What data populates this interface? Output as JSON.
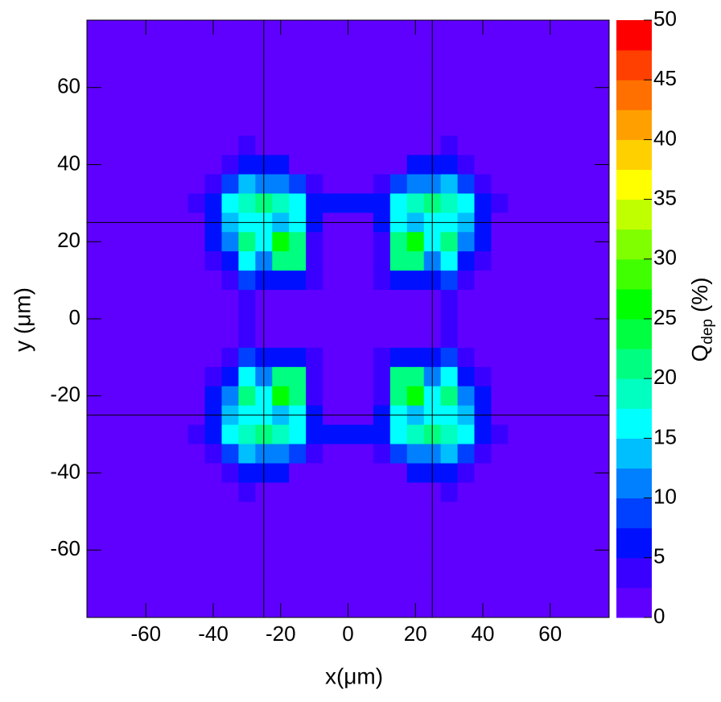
{
  "chart_data": {
    "type": "heatmap",
    "xlabel": "x(μm)",
    "ylabel": "y (μm)",
    "zlabel": "Q",
    "zlabel_sub": "dep",
    "zlabel_unit": "(%)",
    "xlim": [
      -77.5,
      77.5
    ],
    "ylim": [
      -77.5,
      77.5
    ],
    "xticks": [
      -60,
      -40,
      -20,
      0,
      20,
      40,
      60
    ],
    "yticks": [
      -60,
      -40,
      -20,
      0,
      20,
      40,
      60
    ],
    "zlim": [
      0,
      50
    ],
    "zticks": [
      0,
      5,
      10,
      15,
      20,
      25,
      30,
      35,
      40,
      45,
      50
    ],
    "colors": [
      "#5f00ff",
      "#3a00ff",
      "#0010ff",
      "#0040ff",
      "#0080ff",
      "#00bfff",
      "#00ffff",
      "#00ffc0",
      "#00ff80",
      "#00ff40",
      "#00ff00",
      "#40ff00",
      "#80ff00",
      "#c0ff00",
      "#ffff00",
      "#ffd000",
      "#ffa000",
      "#ff7000",
      "#ff4000",
      "#ff0000"
    ],
    "lines_x": [
      -25,
      25
    ],
    "lines_y": [
      -25,
      25
    ],
    "x": [
      -75,
      -70,
      -65,
      -60,
      -55,
      -50,
      -45,
      -40,
      -35,
      -30,
      -25,
      -20,
      -15,
      -10,
      -5,
      0,
      5,
      10,
      15,
      20,
      25,
      30,
      35,
      40,
      45,
      50,
      55,
      60,
      65,
      70,
      75
    ],
    "y": [
      75,
      70,
      65,
      60,
      55,
      50,
      45,
      40,
      35,
      30,
      25,
      20,
      15,
      10,
      5,
      0,
      -5,
      -10,
      -15,
      -20,
      -25,
      -30,
      -35,
      -40,
      -45,
      -50,
      -55,
      -60,
      -65,
      -70,
      -75
    ],
    "z": [
      [
        1,
        1,
        1,
        1,
        1,
        1,
        1,
        1,
        1,
        1,
        1,
        1,
        1,
        1,
        1,
        1,
        1,
        1,
        1,
        1,
        1,
        1,
        1,
        1,
        1,
        1,
        1,
        1,
        1,
        1,
        1
      ],
      [
        1,
        1,
        1,
        1,
        1,
        1,
        1,
        1,
        1,
        1,
        1,
        1,
        1,
        1,
        1,
        1,
        1,
        1,
        1,
        1,
        1,
        1,
        1,
        1,
        1,
        1,
        1,
        1,
        1,
        1,
        1
      ],
      [
        1,
        1,
        1,
        1,
        1,
        1,
        1,
        1,
        1,
        1,
        1,
        1,
        1,
        1,
        1,
        1,
        1,
        1,
        1,
        1,
        1,
        1,
        1,
        1,
        1,
        1,
        1,
        1,
        1,
        1,
        1
      ],
      [
        1,
        1,
        1,
        1,
        1,
        1,
        1,
        1,
        1,
        1,
        1,
        1,
        1,
        1,
        1,
        1,
        1,
        1,
        1,
        1,
        1,
        1,
        1,
        1,
        1,
        1,
        1,
        1,
        1,
        1,
        1
      ],
      [
        1,
        1,
        1,
        1,
        1,
        1,
        1,
        1,
        1,
        1,
        1,
        1,
        1,
        1,
        1,
        1,
        1,
        1,
        1,
        1,
        1,
        1,
        1,
        1,
        1,
        1,
        1,
        1,
        1,
        1,
        1
      ],
      [
        1,
        1,
        1,
        1,
        1,
        1,
        1,
        1,
        1,
        1,
        1,
        1,
        1,
        1,
        1,
        1,
        1,
        1,
        1,
        1,
        1,
        1,
        1,
        1,
        1,
        1,
        1,
        1,
        1,
        1,
        1
      ],
      [
        1,
        1,
        1,
        1,
        1,
        1,
        1,
        1,
        1,
        4,
        1,
        1,
        1,
        1,
        1,
        1,
        1,
        1,
        1,
        1,
        1,
        4,
        1,
        1,
        1,
        1,
        1,
        1,
        1,
        1,
        1
      ],
      [
        1,
        1,
        1,
        1,
        1,
        1,
        1,
        1,
        3,
        7,
        5,
        5,
        1,
        1,
        1,
        1,
        1,
        1,
        1,
        5,
        5,
        7,
        3,
        1,
        1,
        1,
        1,
        1,
        1,
        1,
        1
      ],
      [
        1,
        1,
        1,
        1,
        1,
        1,
        1,
        4,
        9,
        13,
        10,
        10,
        9,
        4,
        1,
        1,
        1,
        4,
        9,
        10,
        10,
        13,
        9,
        4,
        1,
        1,
        1,
        1,
        1,
        1,
        1
      ],
      [
        1,
        1,
        1,
        1,
        1,
        1,
        4,
        6,
        16,
        19,
        21,
        19,
        17,
        6,
        5,
        5,
        5,
        6,
        17,
        19,
        21,
        19,
        16,
        6,
        4,
        1,
        1,
        1,
        1,
        1,
        1
      ],
      [
        1,
        1,
        1,
        1,
        1,
        1,
        1,
        6,
        13,
        17,
        15,
        14,
        17,
        5,
        1,
        1,
        1,
        5,
        17,
        14,
        15,
        17,
        13,
        6,
        1,
        1,
        1,
        1,
        1,
        1,
        1
      ],
      [
        1,
        1,
        1,
        1,
        1,
        1,
        1,
        5,
        12,
        22,
        15,
        26,
        22,
        4,
        1,
        1,
        1,
        4,
        22,
        26,
        15,
        22,
        12,
        5,
        1,
        1,
        1,
        1,
        1,
        1,
        1
      ],
      [
        1,
        1,
        1,
        1,
        1,
        1,
        1,
        4,
        7,
        17,
        12,
        22,
        22,
        4,
        1,
        1,
        1,
        4,
        22,
        22,
        12,
        17,
        7,
        4,
        1,
        1,
        1,
        1,
        1,
        1,
        1
      ],
      [
        1,
        1,
        1,
        1,
        1,
        1,
        1,
        1,
        4,
        8,
        5,
        5,
        5,
        4,
        1,
        1,
        1,
        4,
        5,
        5,
        5,
        8,
        4,
        1,
        1,
        1,
        1,
        1,
        1,
        1,
        1
      ],
      [
        1,
        1,
        1,
        1,
        1,
        1,
        1,
        1,
        1,
        4,
        1,
        1,
        1,
        1,
        1,
        1,
        1,
        1,
        1,
        1,
        1,
        4,
        1,
        1,
        1,
        1,
        1,
        1,
        1,
        1,
        1
      ],
      [
        1,
        1,
        1,
        1,
        1,
        1,
        1,
        1,
        1,
        4,
        1,
        1,
        1,
        1,
        1,
        1,
        1,
        1,
        1,
        1,
        1,
        4,
        1,
        1,
        1,
        1,
        1,
        1,
        1,
        1,
        1
      ],
      [
        1,
        1,
        1,
        1,
        1,
        1,
        1,
        1,
        1,
        4,
        1,
        1,
        1,
        1,
        1,
        1,
        1,
        1,
        1,
        1,
        1,
        4,
        1,
        1,
        1,
        1,
        1,
        1,
        1,
        1,
        1
      ],
      [
        1,
        1,
        1,
        1,
        1,
        1,
        1,
        1,
        4,
        8,
        5,
        5,
        5,
        4,
        1,
        1,
        1,
        4,
        5,
        5,
        5,
        8,
        4,
        1,
        1,
        1,
        1,
        1,
        1,
        1,
        1
      ],
      [
        1,
        1,
        1,
        1,
        1,
        1,
        1,
        4,
        7,
        17,
        12,
        22,
        22,
        4,
        1,
        1,
        1,
        4,
        22,
        22,
        12,
        17,
        7,
        4,
        1,
        1,
        1,
        1,
        1,
        1,
        1
      ],
      [
        1,
        1,
        1,
        1,
        1,
        1,
        1,
        5,
        12,
        22,
        15,
        26,
        22,
        4,
        1,
        1,
        1,
        4,
        22,
        26,
        15,
        22,
        12,
        5,
        1,
        1,
        1,
        1,
        1,
        1,
        1
      ],
      [
        1,
        1,
        1,
        1,
        1,
        1,
        1,
        6,
        13,
        17,
        15,
        14,
        17,
        5,
        1,
        1,
        1,
        5,
        17,
        14,
        15,
        17,
        13,
        6,
        1,
        1,
        1,
        1,
        1,
        1,
        1
      ],
      [
        1,
        1,
        1,
        1,
        1,
        1,
        4,
        6,
        16,
        19,
        21,
        19,
        17,
        6,
        5,
        5,
        5,
        6,
        17,
        19,
        21,
        19,
        16,
        6,
        4,
        1,
        1,
        1,
        1,
        1,
        1
      ],
      [
        1,
        1,
        1,
        1,
        1,
        1,
        1,
        4,
        9,
        13,
        10,
        10,
        9,
        4,
        1,
        1,
        1,
        4,
        9,
        10,
        10,
        13,
        9,
        4,
        1,
        1,
        1,
        1,
        1,
        1,
        1
      ],
      [
        1,
        1,
        1,
        1,
        1,
        1,
        1,
        1,
        3,
        7,
        5,
        5,
        1,
        1,
        1,
        1,
        1,
        1,
        1,
        5,
        5,
        7,
        3,
        1,
        1,
        1,
        1,
        1,
        1,
        1,
        1
      ],
      [
        1,
        1,
        1,
        1,
        1,
        1,
        1,
        1,
        1,
        4,
        1,
        1,
        1,
        1,
        1,
        1,
        1,
        1,
        1,
        1,
        1,
        4,
        1,
        1,
        1,
        1,
        1,
        1,
        1,
        1,
        1
      ],
      [
        1,
        1,
        1,
        1,
        1,
        1,
        1,
        1,
        1,
        1,
        1,
        1,
        1,
        1,
        1,
        1,
        1,
        1,
        1,
        1,
        1,
        1,
        1,
        1,
        1,
        1,
        1,
        1,
        1,
        1,
        1
      ],
      [
        1,
        1,
        1,
        1,
        1,
        1,
        1,
        1,
        1,
        1,
        1,
        1,
        1,
        1,
        1,
        1,
        1,
        1,
        1,
        1,
        1,
        1,
        1,
        1,
        1,
        1,
        1,
        1,
        1,
        1,
        1
      ],
      [
        1,
        1,
        1,
        1,
        1,
        1,
        1,
        1,
        1,
        1,
        1,
        1,
        1,
        1,
        1,
        1,
        1,
        1,
        1,
        1,
        1,
        1,
        1,
        1,
        1,
        1,
        1,
        1,
        1,
        1,
        1
      ],
      [
        1,
        1,
        1,
        1,
        1,
        1,
        1,
        1,
        1,
        1,
        1,
        1,
        1,
        1,
        1,
        1,
        1,
        1,
        1,
        1,
        1,
        1,
        1,
        1,
        1,
        1,
        1,
        1,
        1,
        1,
        1
      ],
      [
        1,
        1,
        1,
        1,
        1,
        1,
        1,
        1,
        1,
        1,
        1,
        1,
        1,
        1,
        1,
        1,
        1,
        1,
        1,
        1,
        1,
        1,
        1,
        1,
        1,
        1,
        1,
        1,
        1,
        1,
        1
      ],
      [
        1,
        1,
        1,
        1,
        1,
        1,
        1,
        1,
        1,
        1,
        1,
        1,
        1,
        1,
        1,
        1,
        1,
        1,
        1,
        1,
        1,
        1,
        1,
        1,
        1,
        1,
        1,
        1,
        1,
        1,
        1
      ]
    ]
  }
}
